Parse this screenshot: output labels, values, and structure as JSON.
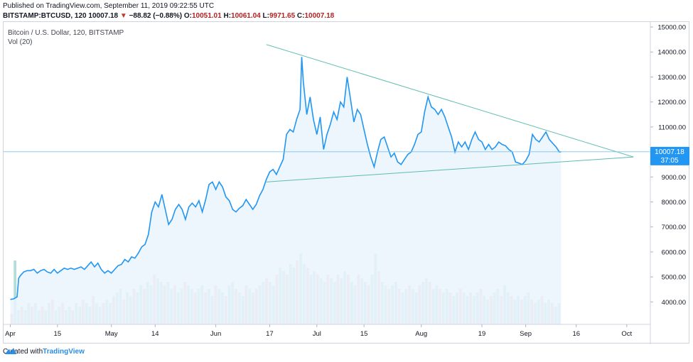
{
  "header": {
    "published": "Published on TradingView.com, September 11, 2019 09:22:55 UTC",
    "symbol": "BITSTAMP:BTCUSD, 120",
    "last": "10007.18",
    "arrow": "▼",
    "change": "−88.82 (−0.88%)",
    "open_label": "O:",
    "open": "10051.01",
    "high_label": "H:",
    "high": "10061.04",
    "low_label": "L:",
    "low": "9971.65",
    "close_label": "C:",
    "close": "10007.18"
  },
  "legend": {
    "main": "Bitcoin / U.S. Dollar, 120, BITSTAMP",
    "volume": "Vol (20)"
  },
  "price_tags": {
    "last": "10007.18",
    "countdown": "37:05"
  },
  "footer": {
    "created_with": "Created with",
    "brand": "TradingView"
  },
  "colors": {
    "line": "#2196f3",
    "area_fill": "#eaf3fd",
    "trendline": "#5fbcb0",
    "price_line": "#7fc4ec",
    "price_tag": "#2196f3",
    "vol_up": "#9fd6cf",
    "vol_down": "#f2b3b3"
  },
  "chart_data": {
    "type": "line",
    "y_axis_ticks": [
      "15000.00",
      "14000.00",
      "13000.00",
      "12000.00",
      "11000.00",
      "10000.00",
      "9000.00",
      "8000.00",
      "7000.00",
      "6000.00",
      "5000.00",
      "4000.00"
    ],
    "ylim": [
      3100,
      15200
    ],
    "x_ticks": [
      {
        "label": "Apr",
        "day": 0
      },
      {
        "label": "15",
        "day": 14
      },
      {
        "label": "May",
        "day": 30
      },
      {
        "label": "14",
        "day": 43
      },
      {
        "label": "Jun",
        "day": 61
      },
      {
        "label": "17",
        "day": 77
      },
      {
        "label": "Jul",
        "day": 91
      },
      {
        "label": "15",
        "day": 105
      },
      {
        "label": "Aug",
        "day": 122
      },
      {
        "label": "19",
        "day": 140
      },
      {
        "label": "Sep",
        "day": 153
      },
      {
        "label": "16",
        "day": 168
      },
      {
        "label": "Oct",
        "day": 183
      }
    ],
    "xlim": [
      -2,
      190
    ],
    "series": [
      {
        "points": [
          [
            0,
            4100
          ],
          [
            1,
            4120
          ],
          [
            2,
            4200
          ],
          [
            2.5,
            4950
          ],
          [
            3,
            5050
          ],
          [
            4,
            5200
          ],
          [
            5,
            5250
          ],
          [
            6,
            5250
          ],
          [
            7,
            5300
          ],
          [
            8,
            5150
          ],
          [
            9,
            5250
          ],
          [
            10,
            5300
          ],
          [
            11,
            5200
          ],
          [
            12,
            5150
          ],
          [
            13,
            5300
          ],
          [
            14,
            5150
          ],
          [
            15,
            5250
          ],
          [
            16,
            5350
          ],
          [
            17,
            5300
          ],
          [
            18,
            5350
          ],
          [
            19,
            5300
          ],
          [
            20,
            5350
          ],
          [
            21,
            5400
          ],
          [
            22,
            5300
          ],
          [
            23,
            5450
          ],
          [
            24,
            5600
          ],
          [
            25,
            5400
          ],
          [
            26,
            5550
          ],
          [
            27,
            5300
          ],
          [
            28,
            5150
          ],
          [
            29,
            5250
          ],
          [
            30,
            5150
          ],
          [
            31,
            5300
          ],
          [
            32,
            5450
          ],
          [
            33,
            5500
          ],
          [
            34,
            5700
          ],
          [
            35,
            5600
          ],
          [
            36,
            5800
          ],
          [
            37,
            5750
          ],
          [
            38,
            5950
          ],
          [
            39,
            6200
          ],
          [
            40,
            6300
          ],
          [
            41,
            6700
          ],
          [
            42,
            7600
          ],
          [
            43,
            8000
          ],
          [
            44,
            7800
          ],
          [
            45,
            8300
          ],
          [
            46,
            7700
          ],
          [
            47,
            7100
          ],
          [
            48,
            7300
          ],
          [
            49,
            7700
          ],
          [
            50,
            7900
          ],
          [
            51,
            7700
          ],
          [
            52,
            7300
          ],
          [
            53,
            7800
          ],
          [
            54,
            7950
          ],
          [
            55,
            7800
          ],
          [
            56,
            8050
          ],
          [
            57,
            7600
          ],
          [
            58,
            8100
          ],
          [
            59,
            8700
          ],
          [
            60,
            8800
          ],
          [
            61,
            8500
          ],
          [
            62,
            8800
          ],
          [
            63,
            8600
          ],
          [
            64,
            8200
          ],
          [
            65,
            8050
          ],
          [
            66,
            7700
          ],
          [
            67,
            7600
          ],
          [
            68,
            7750
          ],
          [
            69,
            7850
          ],
          [
            70,
            8100
          ],
          [
            71,
            7900
          ],
          [
            72,
            7700
          ],
          [
            73,
            7900
          ],
          [
            74,
            8250
          ],
          [
            75,
            8500
          ],
          [
            76,
            8900
          ],
          [
            77,
            9200
          ],
          [
            78,
            9300
          ],
          [
            79,
            9100
          ],
          [
            80,
            9400
          ],
          [
            81,
            9700
          ],
          [
            82,
            10700
          ],
          [
            83,
            10900
          ],
          [
            84,
            10800
          ],
          [
            85,
            11300
          ],
          [
            86,
            11700
          ],
          [
            86.5,
            13800
          ],
          [
            87,
            12800
          ],
          [
            88,
            11500
          ],
          [
            89,
            12200
          ],
          [
            90,
            11300
          ],
          [
            91,
            10700
          ],
          [
            92,
            11400
          ],
          [
            93,
            10100
          ],
          [
            94,
            10700
          ],
          [
            95,
            11100
          ],
          [
            96,
            11600
          ],
          [
            97,
            11300
          ],
          [
            98,
            12000
          ],
          [
            99,
            11800
          ],
          [
            100,
            13000
          ],
          [
            101,
            12100
          ],
          [
            102,
            11200
          ],
          [
            103,
            11700
          ],
          [
            104,
            11500
          ],
          [
            105,
            10900
          ],
          [
            106,
            10300
          ],
          [
            107,
            9800
          ],
          [
            108,
            9400
          ],
          [
            109,
            10000
          ],
          [
            110,
            10500
          ],
          [
            111,
            10600
          ],
          [
            112,
            10200
          ],
          [
            113,
            9800
          ],
          [
            114,
            9950
          ],
          [
            115,
            9600
          ],
          [
            116,
            9500
          ],
          [
            117,
            9700
          ],
          [
            118,
            9900
          ],
          [
            119,
            10000
          ],
          [
            120,
            10300
          ],
          [
            121,
            10700
          ],
          [
            122,
            10800
          ],
          [
            123,
            11600
          ],
          [
            124,
            12200
          ],
          [
            125,
            11800
          ],
          [
            126,
            11700
          ],
          [
            127,
            11500
          ],
          [
            128,
            11700
          ],
          [
            129,
            11400
          ],
          [
            130,
            11000
          ],
          [
            131,
            10600
          ],
          [
            132,
            10000
          ],
          [
            133,
            10400
          ],
          [
            134,
            10200
          ],
          [
            135,
            10400
          ],
          [
            136,
            10100
          ],
          [
            137,
            10500
          ],
          [
            138,
            10800
          ],
          [
            139,
            10500
          ],
          [
            140,
            10400
          ],
          [
            141,
            10100
          ],
          [
            142,
            10300
          ],
          [
            143,
            10100
          ],
          [
            144,
            10200
          ],
          [
            145,
            10400
          ],
          [
            146,
            10300
          ],
          [
            147,
            10250
          ],
          [
            148,
            10100
          ],
          [
            149,
            10000
          ],
          [
            150,
            9600
          ],
          [
            151,
            9550
          ],
          [
            152,
            9500
          ],
          [
            153,
            9650
          ],
          [
            154,
            9900
          ],
          [
            155,
            10700
          ],
          [
            156,
            10500
          ],
          [
            157,
            10400
          ],
          [
            158,
            10600
          ],
          [
            159,
            10800
          ],
          [
            160,
            10500
          ],
          [
            161,
            10350
          ],
          [
            162,
            10200
          ],
          [
            163,
            10000
          ],
          [
            163.5,
            10007
          ]
        ]
      }
    ],
    "trendlines": [
      {
        "from": [
          76,
          14300
        ],
        "to": [
          185,
          9800
        ]
      },
      {
        "from": [
          76,
          8800
        ],
        "to": [
          185,
          9800
        ]
      }
    ],
    "last_price": 10007.18,
    "volume_bars_relative": [
      0.15,
      0.9,
      0.2,
      0.25,
      0.2,
      0.3,
      0.25,
      0.3,
      0.2,
      0.25,
      0.2,
      0.3,
      0.35,
      0.2,
      0.25,
      0.3,
      0.2,
      0.25,
      0.2,
      0.3,
      0.25,
      0.35,
      0.3,
      0.25,
      0.4,
      0.3,
      0.25,
      0.3,
      0.35,
      0.3,
      0.4,
      0.45,
      0.5,
      0.35,
      0.45,
      0.4,
      0.5,
      0.45,
      0.55,
      0.5,
      0.6,
      0.55,
      0.7,
      0.65,
      0.6,
      0.55,
      0.6,
      0.5,
      0.55,
      0.45,
      0.5,
      0.6,
      0.55,
      0.5,
      0.45,
      0.5,
      0.55,
      0.45,
      0.5,
      0.4,
      0.55,
      0.5,
      0.45,
      0.4,
      0.55,
      0.6,
      0.5,
      0.45,
      0.4,
      0.55,
      0.5,
      0.45,
      0.5,
      0.55,
      0.6,
      0.65,
      0.6,
      0.55,
      0.7,
      0.8,
      0.75,
      0.7,
      0.85,
      0.8,
      0.9,
      1.0,
      0.85,
      0.8,
      0.7,
      0.75,
      0.7,
      0.65,
      0.6,
      0.7,
      0.65,
      0.6,
      0.7,
      0.65,
      0.75,
      0.7,
      0.6,
      0.55,
      0.7,
      0.65,
      0.6,
      0.55,
      0.7,
      1.0,
      0.75,
      0.6,
      0.55,
      0.5,
      0.55,
      0.6,
      0.5,
      0.45,
      0.5,
      0.55,
      0.5,
      0.45,
      0.55,
      0.6,
      0.65,
      0.6,
      0.5,
      0.55,
      0.5,
      0.45,
      0.5,
      0.45,
      0.4,
      0.45,
      0.5,
      0.45,
      0.4,
      0.45,
      0.4,
      0.45,
      0.5,
      0.4,
      0.35,
      0.4,
      0.45,
      0.5,
      0.4,
      0.55,
      0.45,
      0.4,
      0.35,
      0.4,
      0.35,
      0.4,
      0.45,
      0.35,
      0.3,
      0.35,
      0.4,
      0.3,
      0.35,
      0.3,
      0.25,
      0.3
    ]
  }
}
